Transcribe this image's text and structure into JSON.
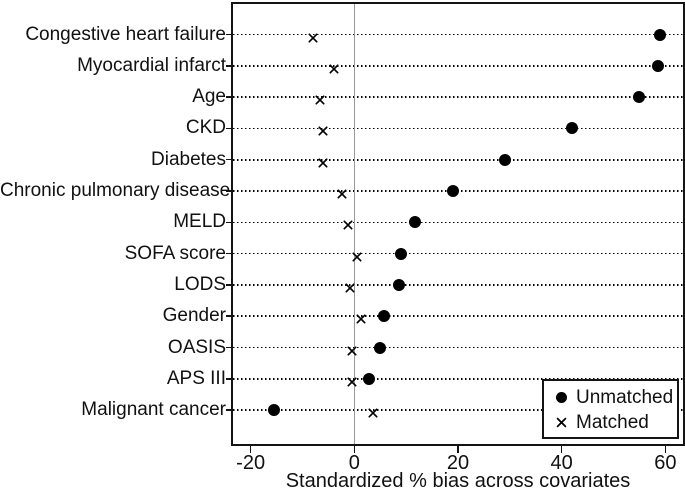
{
  "figure": {
    "background": "#ffffff"
  },
  "legend": {
    "items": [
      {
        "marker": "filled-circle",
        "label": "Unmatched"
      },
      {
        "marker": "x-cross",
        "label": "Matched"
      }
    ]
  },
  "chart_data": {
    "type": "scatter",
    "subtype": "horizontal-dot-plot (covariate balance / Love plot)",
    "title": "",
    "xlabel": "Standardized % bias across covariates",
    "categories": [
      "Congestive heart failure",
      "Myocardial infarct",
      "Age",
      "CKD",
      "Diabetes",
      "Chronic pulmonary disease",
      "MELD",
      "SOFA score",
      "LODS",
      "Gender",
      "OASIS",
      "APS III",
      "Malignant cancer"
    ],
    "series": [
      {
        "name": "Unmatched",
        "marker": "filled-circle",
        "values": [
          59.0,
          58.5,
          55.0,
          42.0,
          29.0,
          19.0,
          11.7,
          9.0,
          8.6,
          5.7,
          4.9,
          2.9,
          -15.4
        ]
      },
      {
        "name": "Matched",
        "marker": "x-cross",
        "values": [
          -7.9,
          -3.9,
          -6.6,
          -6.1,
          -6.1,
          -2.3,
          -1.2,
          0.6,
          -0.8,
          1.3,
          -0.4,
          -0.5,
          3.7
        ]
      }
    ],
    "x_ticks": [
      -20,
      0,
      20,
      40,
      60
    ],
    "x_tick_labels": [
      "-20",
      "0",
      "20",
      "40",
      "60"
    ],
    "xlim": [
      -23.4,
      63.4
    ],
    "grid": "horizontal-dotted",
    "zero_reference_line": true,
    "legend_position": "inside-bottom-right",
    "colors": {
      "marker": "#000000",
      "zero_line": "#9a9a9a",
      "grid": "#000000",
      "border": "#141414",
      "background": "#ffffff"
    }
  }
}
